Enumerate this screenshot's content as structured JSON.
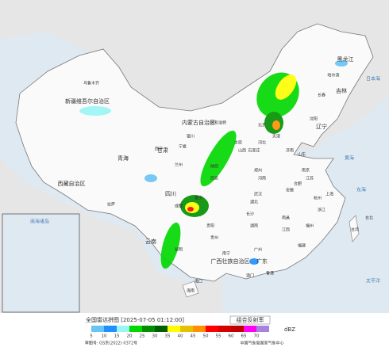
{
  "map": {
    "labels": [
      "黑龙江",
      "吉林",
      "辽宁",
      "内蒙古自治区",
      "新疆维吾尔自治区",
      "西藏自治区",
      "青海",
      "甘肃",
      "宁夏",
      "山西",
      "河北",
      "北京",
      "天津",
      "山东",
      "河南",
      "陕西",
      "四川",
      "重庆",
      "湖北",
      "安徽",
      "江苏",
      "上海",
      "浙江",
      "湖南",
      "江西",
      "福建",
      "台湾",
      "贵州",
      "云南",
      "广西壮族自治区",
      "广东",
      "海南",
      "乌鲁木齐",
      "拉萨",
      "西宁",
      "兰州",
      "成都",
      "昆明",
      "哈尔滨",
      "长春",
      "沈阳",
      "呼和浩特",
      "郑州",
      "济南",
      "西安",
      "武汉",
      "长沙",
      "南京",
      "杭州",
      "福州",
      "广州",
      "南宁",
      "贵阳",
      "南昌",
      "合肥",
      "太原",
      "石家庄",
      "银川",
      "海口",
      "台北",
      "香港",
      "澳门"
    ],
    "oceans": [
      "日本海",
      "黄海",
      "东海",
      "太平洋",
      "南海诸岛"
    ]
  },
  "legend": {
    "title": "全国雷达拼图 [2025-07-05 01:12:00]",
    "product": "组合反射率",
    "unit": "dBZ",
    "levels": [
      {
        "value": 5,
        "color": "#68c4f4"
      },
      {
        "value": 10,
        "color": "#1e90ff"
      },
      {
        "value": 15,
        "color": "#9af5f5"
      },
      {
        "value": 20,
        "color": "#00d800"
      },
      {
        "value": 25,
        "color": "#009000"
      },
      {
        "value": 30,
        "color": "#006000"
      },
      {
        "value": 35,
        "color": "#ffff00"
      },
      {
        "value": 40,
        "color": "#e7c000"
      },
      {
        "value": 45,
        "color": "#ff9000"
      },
      {
        "value": 50,
        "color": "#ff0000"
      },
      {
        "value": 55,
        "color": "#d60000"
      },
      {
        "value": 60,
        "color": "#c00000"
      },
      {
        "value": 65,
        "color": "#ff00f0"
      },
      {
        "value": 70,
        "color": "#a880e0"
      }
    ],
    "approval": "审图号: GS京(2022) 0372号",
    "source": "中国气象局国家气象中心"
  }
}
